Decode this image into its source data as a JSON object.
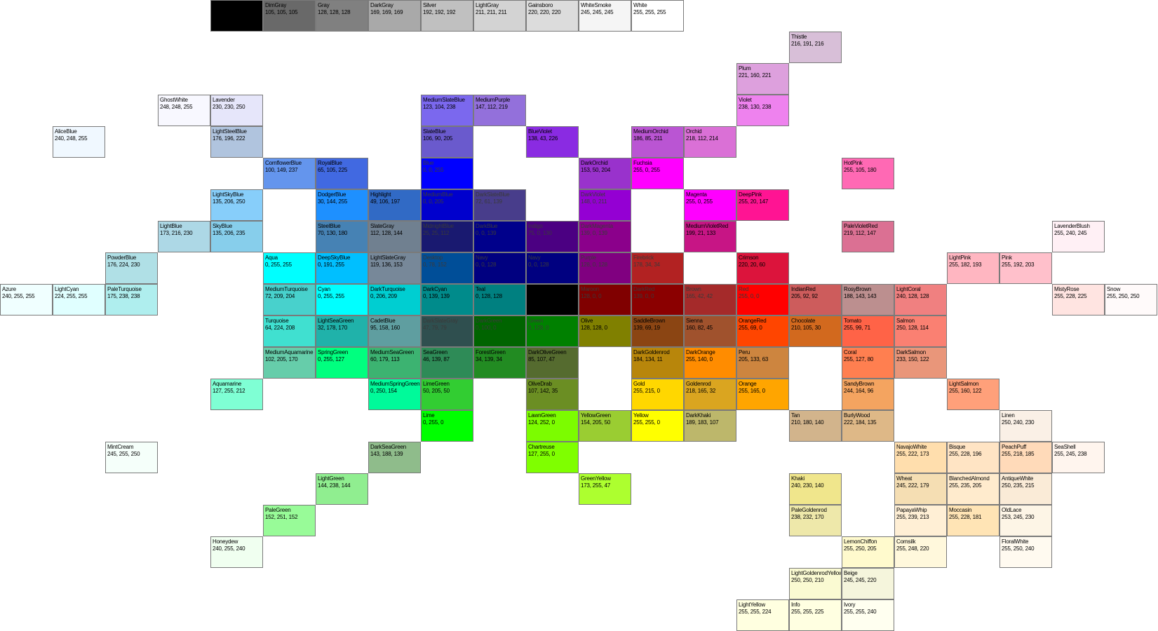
{
  "swatches": [
    {
      "name": "",
      "rgb": "",
      "hex": "#000000",
      "row": 0,
      "col": 4
    },
    {
      "name": "DimGray",
      "rgb": "105, 105, 105",
      "hex": "#696969",
      "row": 0,
      "col": 5
    },
    {
      "name": "Gray",
      "rgb": "128, 128, 128",
      "hex": "#808080",
      "row": 0,
      "col": 6
    },
    {
      "name": "DarkGray",
      "rgb": "169, 169, 169",
      "hex": "#a9a9a9",
      "row": 0,
      "col": 7
    },
    {
      "name": "Silver",
      "rgb": "192, 192, 192",
      "hex": "#c0c0c0",
      "row": 0,
      "col": 8
    },
    {
      "name": "LightGray",
      "rgb": "211, 211, 211",
      "hex": "#d3d3d3",
      "row": 0,
      "col": 9
    },
    {
      "name": "Gainsboro",
      "rgb": "220, 220, 220",
      "hex": "#dcdcdc",
      "row": 0,
      "col": 10
    },
    {
      "name": "WhiteSmoke",
      "rgb": "245, 245, 245",
      "hex": "#f5f5f5",
      "row": 0,
      "col": 11
    },
    {
      "name": "White",
      "rgb": "255, 255, 255",
      "hex": "#ffffff",
      "row": 0,
      "col": 12
    },
    {
      "name": "Thistle",
      "rgb": "216, 191, 216",
      "hex": "#d8bfd8",
      "row": 1,
      "col": 15
    },
    {
      "name": "Plum",
      "rgb": "221, 160, 221",
      "hex": "#dda0dd",
      "row": 2,
      "col": 14
    },
    {
      "name": "GhostWhite",
      "rgb": "248, 248, 255",
      "hex": "#f8f8ff",
      "row": 3,
      "col": 3
    },
    {
      "name": "Lavender",
      "rgb": "230, 230, 250",
      "hex": "#e6e6fa",
      "row": 3,
      "col": 4
    },
    {
      "name": "MediumSlateBlue",
      "rgb": "123, 104, 238",
      "hex": "#7b68ee",
      "row": 3,
      "col": 8
    },
    {
      "name": "MediumPurple",
      "rgb": "147, 112, 219",
      "hex": "#9370db",
      "row": 3,
      "col": 9
    },
    {
      "name": "Violet",
      "rgb": "238, 130, 238",
      "hex": "#ee82ee",
      "row": 3,
      "col": 14
    },
    {
      "name": "AliceBlue",
      "rgb": "240, 248, 255",
      "hex": "#f0f8ff",
      "row": 4,
      "col": 1
    },
    {
      "name": "LightSteelBlue",
      "rgb": "176, 196, 222",
      "hex": "#b0c4de",
      "row": 4,
      "col": 4
    },
    {
      "name": "SlateBlue",
      "rgb": "106, 90, 205",
      "hex": "#6a5acd",
      "row": 4,
      "col": 8
    },
    {
      "name": "BlueViolet",
      "rgb": "138, 43, 226",
      "hex": "#8a2be2",
      "row": 4,
      "col": 10
    },
    {
      "name": "MediumOrchid",
      "rgb": "186, 85, 211",
      "hex": "#ba55d3",
      "row": 4,
      "col": 12
    },
    {
      "name": "Orchid",
      "rgb": "218, 112, 214",
      "hex": "#da70d6",
      "row": 4,
      "col": 13
    },
    {
      "name": "CornflowerBlue",
      "rgb": "100, 149, 237",
      "hex": "#6495ed",
      "row": 5,
      "col": 5
    },
    {
      "name": "RoyalBlue",
      "rgb": "65, 105, 225",
      "hex": "#4169e1",
      "row": 5,
      "col": 6
    },
    {
      "name": "Blue",
      "rgb": "0, 0, 255",
      "hex": "#0000ff",
      "row": 5,
      "col": 8
    },
    {
      "name": "DarkOrchid",
      "rgb": "153, 50, 204",
      "hex": "#9932cc",
      "row": 5,
      "col": 11
    },
    {
      "name": "Fuchsia",
      "rgb": "255, 0, 255",
      "hex": "#ff00ff",
      "row": 5,
      "col": 12
    },
    {
      "name": "HotPink",
      "rgb": "255, 105, 180",
      "hex": "#ff69b4",
      "row": 5,
      "col": 16
    },
    {
      "name": "LightSkyBlue",
      "rgb": "135, 206, 250",
      "hex": "#87cefa",
      "row": 6,
      "col": 4
    },
    {
      "name": "DodgerBlue",
      "rgb": "30, 144, 255",
      "hex": "#1e90ff",
      "row": 6,
      "col": 6
    },
    {
      "name": "Highlight",
      "rgb": "49, 106, 197",
      "hex": "#316ac5",
      "row": 6,
      "col": 7
    },
    {
      "name": "MediumBlue",
      "rgb": "0, 0, 205",
      "hex": "#0000cd",
      "row": 6,
      "col": 8
    },
    {
      "name": "DarkSlateBlue",
      "rgb": "72, 61, 139",
      "hex": "#483d8b",
      "row": 6,
      "col": 9
    },
    {
      "name": "DarkViolet",
      "rgb": "148, 0, 211",
      "hex": "#9400d3",
      "row": 6,
      "col": 11
    },
    {
      "name": "Magenta",
      "rgb": "255, 0, 255",
      "hex": "#ff00ff",
      "row": 6,
      "col": 13
    },
    {
      "name": "DeepPink",
      "rgb": "255, 20, 147",
      "hex": "#ff1493",
      "row": 6,
      "col": 14
    },
    {
      "name": "LightBlue",
      "rgb": "173, 216, 230",
      "hex": "#add8e6",
      "row": 7,
      "col": 3
    },
    {
      "name": "SkyBlue",
      "rgb": "135, 206, 235",
      "hex": "#87ceeb",
      "row": 7,
      "col": 4
    },
    {
      "name": "SteelBlue",
      "rgb": "70, 130, 180",
      "hex": "#4682b4",
      "row": 7,
      "col": 6
    },
    {
      "name": "SlateGray",
      "rgb": "112, 128, 144",
      "hex": "#708090",
      "row": 7,
      "col": 7
    },
    {
      "name": "MidnightBlue",
      "rgb": "25, 25, 112",
      "hex": "#191970",
      "row": 7,
      "col": 8
    },
    {
      "name": "DarkBlue",
      "rgb": "0, 0, 139",
      "hex": "#00008b",
      "row": 7,
      "col": 9
    },
    {
      "name": "Indigo",
      "rgb": "75, 0, 130",
      "hex": "#4b0082",
      "row": 7,
      "col": 10
    },
    {
      "name": "DarkMagenta",
      "rgb": "139, 0, 139",
      "hex": "#8b008b",
      "row": 7,
      "col": 11
    },
    {
      "name": "MediumVioletRed",
      "rgb": "199, 21, 133",
      "hex": "#c71585",
      "row": 7,
      "col": 13
    },
    {
      "name": "PaleVioletRed",
      "rgb": "219, 112, 147",
      "hex": "#db7093",
      "row": 7,
      "col": 16
    },
    {
      "name": "LavenderBlush",
      "rgb": "255, 240, 245",
      "hex": "#fff0f5",
      "row": 7,
      "col": 20
    },
    {
      "name": "PowderBlue",
      "rgb": "176, 224, 230",
      "hex": "#b0e0e6",
      "row": 8,
      "col": 2
    },
    {
      "name": "Aqua",
      "rgb": "0, 255, 255",
      "hex": "#00ffff",
      "row": 8,
      "col": 5
    },
    {
      "name": "DeepSkyBlue",
      "rgb": "0, 191, 255",
      "hex": "#00bfff",
      "row": 8,
      "col": 6
    },
    {
      "name": "LightSlateGray",
      "rgb": "119, 136, 153",
      "hex": "#778899",
      "row": 8,
      "col": 7
    },
    {
      "name": "Desktop",
      "rgb": "0, 78, 152",
      "hex": "#004e98",
      "row": 8,
      "col": 8
    },
    {
      "name": "Navy",
      "rgb": "0, 0, 128",
      "hex": "#000080",
      "row": 8,
      "col": 9
    },
    {
      "name": "Navy",
      "rgb": "0, 0, 128",
      "hex": "#000080",
      "row": 8,
      "col": 10
    },
    {
      "name": "Purple",
      "rgb": "128, 0, 128",
      "hex": "#800080",
      "row": 8,
      "col": 11
    },
    {
      "name": "Firebrick",
      "rgb": "178, 34, 34",
      "hex": "#b22222",
      "row": 8,
      "col": 12
    },
    {
      "name": "Crimson",
      "rgb": "220, 20, 60",
      "hex": "#dc143c",
      "row": 8,
      "col": 14
    },
    {
      "name": "LightPink",
      "rgb": "255, 182, 193",
      "hex": "#ffb6c1",
      "row": 8,
      "col": 18
    },
    {
      "name": "Pink",
      "rgb": "255, 192, 203",
      "hex": "#ffc0cb",
      "row": 8,
      "col": 19
    },
    {
      "name": "Azure",
      "rgb": "240, 255, 255",
      "hex": "#f0ffff",
      "row": 9,
      "col": 0
    },
    {
      "name": "LightCyan",
      "rgb": "224, 255, 255",
      "hex": "#e0ffff",
      "row": 9,
      "col": 1
    },
    {
      "name": "PaleTurquoise",
      "rgb": "175, 238, 238",
      "hex": "#afeeee",
      "row": 9,
      "col": 2
    },
    {
      "name": "MediumTurquoise",
      "rgb": "72, 209, 204",
      "hex": "#48d1cc",
      "row": 9,
      "col": 5
    },
    {
      "name": "Cyan",
      "rgb": "0, 255, 255",
      "hex": "#00ffff",
      "row": 9,
      "col": 6
    },
    {
      "name": "DarkTurquoise",
      "rgb": "0, 206, 209",
      "hex": "#00ced1",
      "row": 9,
      "col": 7
    },
    {
      "name": "DarkCyan",
      "rgb": "0, 139, 139",
      "hex": "#008b8b",
      "row": 9,
      "col": 8
    },
    {
      "name": "Teal",
      "rgb": "0, 128, 128",
      "hex": "#008080",
      "row": 9,
      "col": 9
    },
    {
      "name": "",
      "rgb": "",
      "hex": "#000000",
      "row": 9,
      "col": 10
    },
    {
      "name": "Maroon",
      "rgb": "128, 0, 0",
      "hex": "#800000",
      "row": 9,
      "col": 11
    },
    {
      "name": "DarkRed",
      "rgb": "139, 0, 0",
      "hex": "#8b0000",
      "row": 9,
      "col": 12
    },
    {
      "name": "Brown",
      "rgb": "165, 42, 42",
      "hex": "#a52a2a",
      "row": 9,
      "col": 13
    },
    {
      "name": "Red",
      "rgb": "255, 0, 0",
      "hex": "#ff0000",
      "row": 9,
      "col": 14
    },
    {
      "name": "IndianRed",
      "rgb": "205, 92, 92",
      "hex": "#cd5c5c",
      "row": 9,
      "col": 15
    },
    {
      "name": "RosyBrown",
      "rgb": "188, 143, 143",
      "hex": "#bc8f8f",
      "row": 9,
      "col": 16
    },
    {
      "name": "LightCoral",
      "rgb": "240, 128, 128",
      "hex": "#f08080",
      "row": 9,
      "col": 17
    },
    {
      "name": "MistyRose",
      "rgb": "255, 228, 225",
      "hex": "#ffe4e1",
      "row": 9,
      "col": 20
    },
    {
      "name": "Snow",
      "rgb": "255, 250, 250",
      "hex": "#fffafa",
      "row": 9,
      "col": 21
    },
    {
      "name": "Turquoise",
      "rgb": "64, 224, 208",
      "hex": "#40e0d0",
      "row": 10,
      "col": 5
    },
    {
      "name": "LightSeaGreen",
      "rgb": "32, 178, 170",
      "hex": "#20b2aa",
      "row": 10,
      "col": 6
    },
    {
      "name": "CadetBlue",
      "rgb": "95, 158, 160",
      "hex": "#5f9ea0",
      "row": 10,
      "col": 7
    },
    {
      "name": "DarkSlateGray",
      "rgb": "47, 79, 79",
      "hex": "#2f4f4f",
      "row": 10,
      "col": 8
    },
    {
      "name": "DarkGreen",
      "rgb": "0, 100, 0",
      "hex": "#006400",
      "row": 10,
      "col": 9
    },
    {
      "name": "Green",
      "rgb": "0, 128, 0",
      "hex": "#008000",
      "row": 10,
      "col": 10
    },
    {
      "name": "Olive",
      "rgb": "128, 128, 0",
      "hex": "#808000",
      "row": 10,
      "col": 11
    },
    {
      "name": "SaddleBrown",
      "rgb": "139, 69, 19",
      "hex": "#8b4513",
      "row": 10,
      "col": 12
    },
    {
      "name": "Sienna",
      "rgb": "160, 82, 45",
      "hex": "#a0522d",
      "row": 10,
      "col": 13
    },
    {
      "name": "OrangeRed",
      "rgb": "255, 69, 0",
      "hex": "#ff4500",
      "row": 10,
      "col": 14
    },
    {
      "name": "Chocolate",
      "rgb": "210, 105, 30",
      "hex": "#d2691e",
      "row": 10,
      "col": 15
    },
    {
      "name": "Tomato",
      "rgb": "255, 99, 71",
      "hex": "#ff6347",
      "row": 10,
      "col": 16
    },
    {
      "name": "Salmon",
      "rgb": "250, 128, 114",
      "hex": "#fa8072",
      "row": 10,
      "col": 17
    },
    {
      "name": "MediumAquamarine",
      "rgb": "102, 205, 170",
      "hex": "#66cdaa",
      "row": 11,
      "col": 5
    },
    {
      "name": "SpringGreen",
      "rgb": "0, 255, 127",
      "hex": "#00ff7f",
      "row": 11,
      "col": 6
    },
    {
      "name": "MediumSeaGreen",
      "rgb": "60, 179, 113",
      "hex": "#3cb371",
      "row": 11,
      "col": 7
    },
    {
      "name": "SeaGreen",
      "rgb": "46, 139, 87",
      "hex": "#2e8b57",
      "row": 11,
      "col": 8
    },
    {
      "name": "ForestGreen",
      "rgb": "34, 139, 34",
      "hex": "#228b22",
      "row": 11,
      "col": 9
    },
    {
      "name": "DarkOliveGreen",
      "rgb": "85, 107, 47",
      "hex": "#556b2f",
      "row": 11,
      "col": 10
    },
    {
      "name": "DarkGoldenrod",
      "rgb": "184, 134, 11",
      "hex": "#b8860b",
      "row": 11,
      "col": 12
    },
    {
      "name": "DarkOrange",
      "rgb": "255, 140, 0",
      "hex": "#ff8c00",
      "row": 11,
      "col": 13
    },
    {
      "name": "Peru",
      "rgb": "205, 133, 63",
      "hex": "#cd853f",
      "row": 11,
      "col": 14
    },
    {
      "name": "Coral",
      "rgb": "255, 127, 80",
      "hex": "#ff7f50",
      "row": 11,
      "col": 16
    },
    {
      "name": "DarkSalmon",
      "rgb": "233, 150, 122",
      "hex": "#e9967a",
      "row": 11,
      "col": 17
    },
    {
      "name": "Aquamarine",
      "rgb": "127, 255, 212",
      "hex": "#7fffd4",
      "row": 12,
      "col": 4
    },
    {
      "name": "MediumSpringGreen",
      "rgb": "0, 250, 154",
      "hex": "#00fa9a",
      "row": 12,
      "col": 7
    },
    {
      "name": "LimeGreen",
      "rgb": "50, 205, 50",
      "hex": "#32cd32",
      "row": 12,
      "col": 8
    },
    {
      "name": "OliveDrab",
      "rgb": "107, 142, 35",
      "hex": "#6b8e23",
      "row": 12,
      "col": 10
    },
    {
      "name": "Gold",
      "rgb": "255, 215, 0",
      "hex": "#ffd700",
      "row": 12,
      "col": 12
    },
    {
      "name": "Goldenrod",
      "rgb": "218, 165, 32",
      "hex": "#daa520",
      "row": 12,
      "col": 13
    },
    {
      "name": "Orange",
      "rgb": "255, 165, 0",
      "hex": "#ffa500",
      "row": 12,
      "col": 14
    },
    {
      "name": "SandyBrown",
      "rgb": "244, 164, 96",
      "hex": "#f4a460",
      "row": 12,
      "col": 16
    },
    {
      "name": "LightSalmon",
      "rgb": "255, 160, 122",
      "hex": "#ffa07a",
      "row": 12,
      "col": 18
    },
    {
      "name": "Lime",
      "rgb": "0, 255, 0",
      "hex": "#00ff00",
      "row": 13,
      "col": 8
    },
    {
      "name": "LawnGreen",
      "rgb": "124, 252, 0",
      "hex": "#7cfc00",
      "row": 13,
      "col": 10
    },
    {
      "name": "YellowGreen",
      "rgb": "154, 205, 50",
      "hex": "#9acd32",
      "row": 13,
      "col": 11
    },
    {
      "name": "Yellow",
      "rgb": "255, 255, 0",
      "hex": "#ffff00",
      "row": 13,
      "col": 12
    },
    {
      "name": "DarkKhaki",
      "rgb": "189, 183, 107",
      "hex": "#bdb76b",
      "row": 13,
      "col": 13
    },
    {
      "name": "Tan",
      "rgb": "210, 180, 140",
      "hex": "#d2b48c",
      "row": 13,
      "col": 15
    },
    {
      "name": "BurlyWood",
      "rgb": "222, 184, 135",
      "hex": "#deb887",
      "row": 13,
      "col": 16
    },
    {
      "name": "Linen",
      "rgb": "250, 240, 230",
      "hex": "#faf0e6",
      "row": 13,
      "col": 19
    },
    {
      "name": "MintCream",
      "rgb": "245, 255, 250",
      "hex": "#f5fffa",
      "row": 14,
      "col": 2
    },
    {
      "name": "DarkSeaGreen",
      "rgb": "143, 188, 139",
      "hex": "#8fbc8b",
      "row": 14,
      "col": 7
    },
    {
      "name": "Chartreuse",
      "rgb": "127, 255, 0",
      "hex": "#7fff00",
      "row": 14,
      "col": 10
    },
    {
      "name": "NavajoWhite",
      "rgb": "255, 222, 173",
      "hex": "#ffdead",
      "row": 14,
      "col": 17
    },
    {
      "name": "Bisque",
      "rgb": "255, 228, 196",
      "hex": "#ffe4c4",
      "row": 14,
      "col": 18
    },
    {
      "name": "PeachPuff",
      "rgb": "255, 218, 185",
      "hex": "#ffdab9",
      "row": 14,
      "col": 19
    },
    {
      "name": "SeaShell",
      "rgb": "255, 245, 238",
      "hex": "#fff5ee",
      "row": 14,
      "col": 20
    },
    {
      "name": "LightGreen",
      "rgb": "144, 238, 144",
      "hex": "#90ee90",
      "row": 15,
      "col": 6
    },
    {
      "name": "GreenYellow",
      "rgb": "173, 255, 47",
      "hex": "#adff2f",
      "row": 15,
      "col": 11
    },
    {
      "name": "Khaki",
      "rgb": "240, 230, 140",
      "hex": "#f0e68c",
      "row": 15,
      "col": 15
    },
    {
      "name": "Wheat",
      "rgb": "245, 222, 179",
      "hex": "#f5deb3",
      "row": 15,
      "col": 17
    },
    {
      "name": "BlanchedAlmond",
      "rgb": "255, 235, 205",
      "hex": "#ffebcd",
      "row": 15,
      "col": 18
    },
    {
      "name": "AntiqueWhite",
      "rgb": "250, 235, 215",
      "hex": "#faebd7",
      "row": 15,
      "col": 19
    },
    {
      "name": "PaleGreen",
      "rgb": "152, 251, 152",
      "hex": "#98fb98",
      "row": 16,
      "col": 5
    },
    {
      "name": "PaleGoldenrod",
      "rgb": "238, 232, 170",
      "hex": "#eee8aa",
      "row": 16,
      "col": 15
    },
    {
      "name": "PapayaWhip",
      "rgb": "255, 239, 213",
      "hex": "#ffefd5",
      "row": 16,
      "col": 17
    },
    {
      "name": "Moccasin",
      "rgb": "255, 228, 181",
      "hex": "#ffe4b5",
      "row": 16,
      "col": 18
    },
    {
      "name": "OldLace",
      "rgb": "253, 245, 230",
      "hex": "#fdf5e6",
      "row": 16,
      "col": 19
    },
    {
      "name": "Honeydew",
      "rgb": "240, 255, 240",
      "hex": "#f0fff0",
      "row": 17,
      "col": 4
    },
    {
      "name": "LemonChiffon",
      "rgb": "255, 250, 205",
      "hex": "#fffacd",
      "row": 17,
      "col": 16
    },
    {
      "name": "Cornsilk",
      "rgb": "255, 248, 220",
      "hex": "#fff8dc",
      "row": 17,
      "col": 17
    },
    {
      "name": "FloralWhite",
      "rgb": "255, 250, 240",
      "hex": "#fffaf0",
      "row": 17,
      "col": 19
    },
    {
      "name": "LightGoldenrodYellow",
      "rgb": "250, 250, 210",
      "hex": "#fafad2",
      "row": 18,
      "col": 15
    },
    {
      "name": "Beige",
      "rgb": "245, 245, 220",
      "hex": "#f5f5dc",
      "row": 18,
      "col": 16
    },
    {
      "name": "LightYellow",
      "rgb": "255, 255, 224",
      "hex": "#ffffe0",
      "row": 19,
      "col": 14
    },
    {
      "name": "Info",
      "rgb": "255, 255, 225",
      "hex": "#ffffe1",
      "row": 19,
      "col": 15
    },
    {
      "name": "Ivory",
      "rgb": "255, 255, 240",
      "hex": "#fffff0",
      "row": 19,
      "col": 16
    }
  ]
}
